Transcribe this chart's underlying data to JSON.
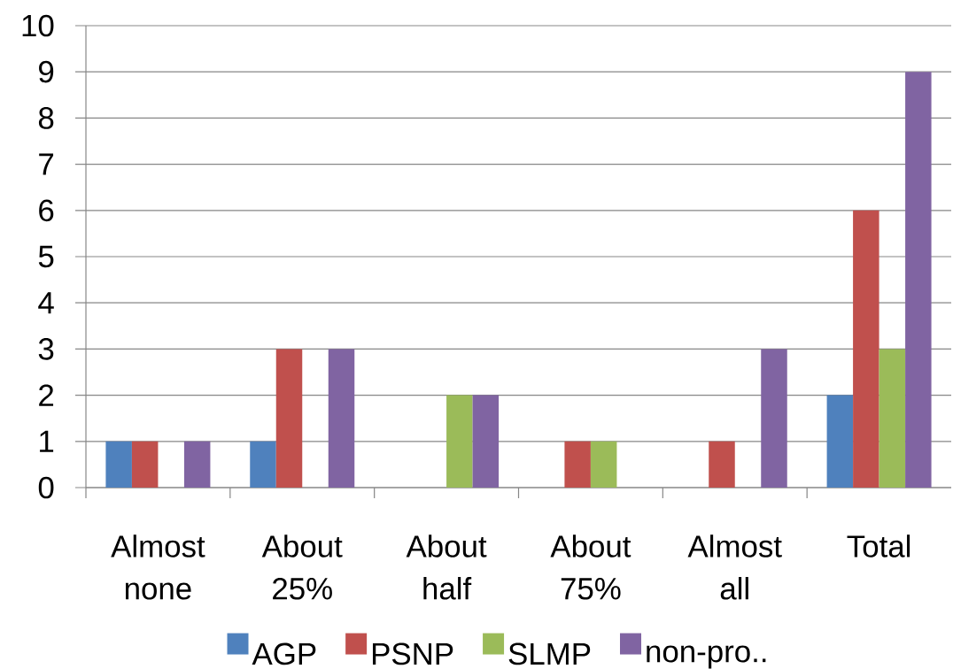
{
  "chart_data": {
    "type": "bar",
    "categories": [
      "Almost none",
      "About 25%",
      "About half",
      "About 75%",
      "Almost all",
      "Total"
    ],
    "series": [
      {
        "name": "AGP",
        "color": "#4f81bd",
        "values": [
          1,
          1,
          0,
          0,
          0,
          2
        ]
      },
      {
        "name": "PSNP",
        "color": "#c0504d",
        "values": [
          1,
          3,
          0,
          1,
          1,
          6
        ]
      },
      {
        "name": "SLMP",
        "color": "#9bbb59",
        "values": [
          0,
          0,
          2,
          1,
          0,
          3
        ]
      },
      {
        "name": "non-pro..",
        "color": "#8064a2",
        "values": [
          1,
          3,
          2,
          0,
          3,
          9
        ]
      }
    ],
    "ylim": [
      0,
      10
    ],
    "yticks": [
      0,
      1,
      2,
      3,
      4,
      5,
      6,
      7,
      8,
      9,
      10
    ],
    "grid": "y",
    "legend": "bottom"
  }
}
